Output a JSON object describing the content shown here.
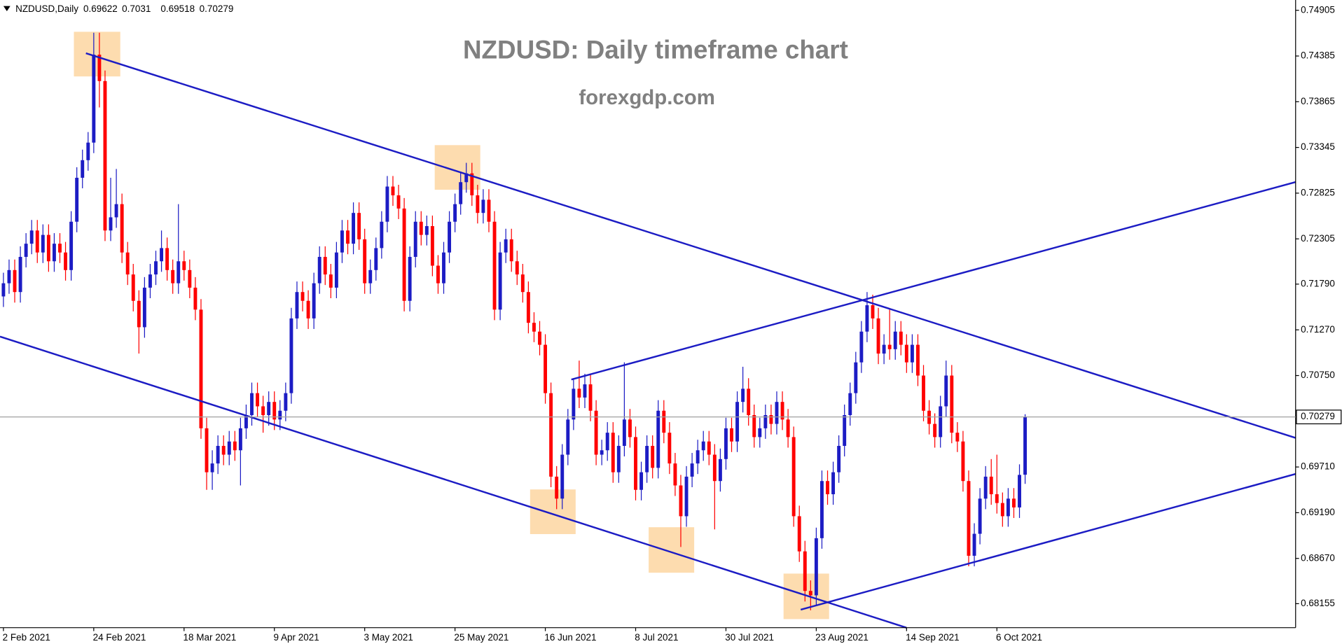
{
  "chart_data": {
    "type": "candlestick",
    "symbol_label": "NZDUSD,Daily",
    "title": "NZDUSD: Daily timeframe chart",
    "subtitle": "forexgdp.com",
    "up_color": "#1c1cc4",
    "down_color": "#ff0000",
    "price_line_color": "#a0a0a0",
    "grid": false,
    "ylim": [
      0.67882,
      0.75022
    ],
    "yticks": [
      0.74905,
      0.74385,
      0.73865,
      0.73345,
      {
        "value": 0.72825,
        "label": "0.72825"
      },
      0.72305,
      {
        "value": 0.7179,
        "label": "0.71790"
      },
      {
        "value": 0.7127,
        "label": "0.71270"
      },
      {
        "value": 0.7075,
        "label": "0.70750"
      },
      {
        "value": 0.6971,
        "label": "0.69710"
      },
      {
        "value": 0.6919,
        "label": "0.69190"
      },
      {
        "value": 0.6867,
        "label": "0.68670"
      },
      0.68155
    ],
    "categories": [
      "2 Feb 2021",
      null,
      null,
      null,
      null,
      null,
      null,
      null,
      null,
      null,
      null,
      null,
      null,
      null,
      null,
      null,
      "24 Feb 2021",
      null,
      null,
      null,
      null,
      null,
      null,
      null,
      null,
      null,
      null,
      null,
      null,
      null,
      null,
      null,
      "18 Mar 2021",
      null,
      null,
      null,
      null,
      null,
      null,
      null,
      null,
      null,
      null,
      null,
      null,
      null,
      null,
      null,
      "9 Apr 2021",
      null,
      null,
      null,
      null,
      null,
      null,
      null,
      null,
      null,
      null,
      null,
      null,
      null,
      null,
      null,
      "3 May 2021",
      null,
      null,
      null,
      null,
      null,
      null,
      null,
      null,
      null,
      null,
      null,
      null,
      null,
      null,
      null,
      "25 May 2021",
      null,
      null,
      null,
      null,
      null,
      null,
      null,
      null,
      null,
      null,
      null,
      null,
      null,
      null,
      null,
      "16 Jun 2021",
      null,
      null,
      null,
      null,
      null,
      null,
      null,
      null,
      null,
      null,
      null,
      null,
      null,
      null,
      null,
      "8 Jul 2021",
      null,
      null,
      null,
      null,
      null,
      null,
      null,
      null,
      null,
      null,
      null,
      null,
      null,
      null,
      null,
      "30 Jul 2021",
      null,
      null,
      null,
      null,
      null,
      null,
      null,
      null,
      null,
      null,
      null,
      null,
      null,
      null,
      null,
      "23 Aug 2021",
      null,
      null,
      null,
      null,
      null,
      null,
      null,
      null,
      null,
      null,
      null,
      null,
      null,
      null,
      null,
      "14 Sep 2021",
      null,
      null,
      null,
      null,
      null,
      null,
      null,
      null,
      null,
      null,
      null,
      null,
      null,
      null,
      null,
      "6 Oct 2021",
      null,
      null,
      null,
      null,
      null
    ],
    "open": [
      0.7165,
      0.718,
      0.7195,
      0.717,
      0.721,
      0.7225,
      0.724,
      0.7215,
      0.7235,
      0.7205,
      0.7225,
      0.7215,
      0.7195,
      0.725,
      0.73,
      0.732,
      0.734,
      0.744,
      0.741,
      0.724,
      0.7255,
      0.727,
      0.7215,
      0.719,
      0.716,
      0.713,
      0.7175,
      0.719,
      0.7205,
      0.722,
      0.7195,
      0.718,
      0.7205,
      0.7195,
      0.7175,
      0.715,
      0.7015,
      0.6965,
      0.6975,
      0.6995,
      0.6985,
      0.7,
      0.699,
      0.7015,
      0.703,
      0.7055,
      0.704,
      0.703,
      0.7045,
      0.7025,
      0.7035,
      0.7055,
      0.714,
      0.717,
      0.716,
      0.714,
      0.718,
      0.721,
      0.719,
      0.7175,
      0.7215,
      0.724,
      0.7225,
      0.726,
      0.723,
      0.718,
      0.7195,
      0.722,
      0.725,
      0.729,
      0.728,
      0.7265,
      0.716,
      0.721,
      0.725,
      0.7235,
      0.7245,
      0.72,
      0.718,
      0.7215,
      0.725,
      0.727,
      0.7295,
      0.7305,
      0.728,
      0.726,
      0.7275,
      0.725,
      0.715,
      0.7215,
      0.723,
      0.7205,
      0.719,
      0.717,
      0.7135,
      0.7125,
      0.711,
      0.7055,
      0.696,
      0.6935,
      0.6985,
      0.7025,
      0.706,
      0.705,
      0.7065,
      0.7035,
      0.6985,
      0.699,
      0.701,
      0.6965,
      0.6995,
      0.7025,
      0.7005,
      0.6945,
      0.6965,
      0.6995,
      0.697,
      0.7035,
      0.701,
      0.6975,
      0.695,
      0.6915,
      0.696,
      0.6975,
      0.699,
      0.7,
      0.6985,
      0.6955,
      0.698,
      0.7015,
      0.7,
      0.7045,
      0.706,
      0.703,
      0.7005,
      0.7015,
      0.703,
      0.702,
      0.7045,
      0.7025,
      0.7005,
      0.6915,
      0.6875,
      0.683,
      0.6825,
      0.689,
      0.6955,
      0.694,
      0.6965,
      0.6995,
      0.703,
      0.7055,
      0.709,
      0.7125,
      0.7155,
      0.714,
      0.71,
      0.711,
      0.7105,
      0.7125,
      0.711,
      0.709,
      0.711,
      0.7075,
      0.7035,
      0.702,
      0.7005,
      0.704,
      0.7075,
      0.701,
      0.7,
      0.6955,
      0.687,
      0.6895,
      0.6935,
      0.696,
      0.694,
      0.693,
      0.6915,
      0.6935,
      0.6925,
      0.69622
    ],
    "high": [
      0.7192,
      0.7207,
      0.7207,
      0.7222,
      0.7237,
      0.7252,
      0.7252,
      0.7247,
      0.7247,
      0.7237,
      0.7237,
      0.7227,
      0.7262,
      0.7312,
      0.7332,
      0.7352,
      0.7465,
      0.7465,
      0.7422,
      0.73,
      0.731,
      0.7282,
      0.7227,
      0.7202,
      0.7172,
      0.7187,
      0.7202,
      0.7217,
      0.724,
      0.7232,
      0.7207,
      0.727,
      0.7217,
      0.7207,
      0.7187,
      0.7162,
      0.7027,
      0.699,
      0.7007,
      0.7007,
      0.7012,
      0.7012,
      0.7027,
      0.7042,
      0.7067,
      0.7067,
      0.7052,
      0.7057,
      0.7057,
      0.7047,
      0.7067,
      0.7152,
      0.7182,
      0.7182,
      0.7172,
      0.7192,
      0.7222,
      0.7222,
      0.7202,
      0.7227,
      0.7252,
      0.7252,
      0.7272,
      0.7272,
      0.7242,
      0.7207,
      0.7232,
      0.7262,
      0.7302,
      0.7302,
      0.7292,
      0.7277,
      0.7222,
      0.7262,
      0.7262,
      0.7257,
      0.7257,
      0.7212,
      0.7227,
      0.7262,
      0.7282,
      0.7307,
      0.7317,
      0.7317,
      0.7292,
      0.7287,
      0.7287,
      0.7262,
      0.7227,
      0.7242,
      0.7242,
      0.7217,
      0.7202,
      0.7182,
      0.7147,
      0.7137,
      0.7122,
      0.7067,
      0.6972,
      0.6997,
      0.7037,
      0.7072,
      0.7092,
      0.7077,
      0.7077,
      0.7047,
      0.7002,
      0.7022,
      0.7022,
      0.7007,
      0.709,
      0.7037,
      0.7017,
      0.6977,
      0.7007,
      0.7007,
      0.7047,
      0.7047,
      0.7022,
      0.6987,
      0.6962,
      0.6972,
      0.6987,
      0.7002,
      0.7012,
      0.7012,
      0.6997,
      0.6992,
      0.7027,
      0.7027,
      0.7057,
      0.7085,
      0.7072,
      0.7042,
      0.7027,
      0.7042,
      0.7042,
      0.7057,
      0.7057,
      0.7037,
      0.7017,
      0.6927,
      0.6887,
      0.6842,
      0.6902,
      0.6967,
      0.6967,
      0.6977,
      0.7007,
      0.7042,
      0.7067,
      0.7102,
      0.7137,
      0.717,
      0.7167,
      0.7152,
      0.7122,
      0.715,
      0.7137,
      0.7137,
      0.7122,
      0.7122,
      0.7122,
      0.7087,
      0.7047,
      0.7032,
      0.7052,
      0.7092,
      0.7087,
      0.7022,
      0.7012,
      0.6967,
      0.6907,
      0.6947,
      0.6972,
      0.698,
      0.6985,
      0.6942,
      0.6947,
      0.6947,
      0.6974,
      0.7031
    ],
    "low": [
      0.7153,
      0.7168,
      0.7158,
      0.7158,
      0.7198,
      0.7213,
      0.7203,
      0.7203,
      0.7193,
      0.7193,
      0.7203,
      0.7183,
      0.7183,
      0.7238,
      0.7288,
      0.7308,
      0.7328,
      0.738,
      0.7228,
      0.7228,
      0.7243,
      0.7203,
      0.7178,
      0.7148,
      0.71,
      0.7118,
      0.7163,
      0.7178,
      0.7193,
      0.7183,
      0.7168,
      0.7168,
      0.7183,
      0.7163,
      0.7138,
      0.7003,
      0.6945,
      0.6945,
      0.6963,
      0.6973,
      0.6973,
      0.6978,
      0.695,
      0.7003,
      0.7018,
      0.7028,
      0.701,
      0.7018,
      0.7013,
      0.7013,
      0.7023,
      0.7043,
      0.7128,
      0.7148,
      0.7128,
      0.7128,
      0.7168,
      0.7178,
      0.7163,
      0.7163,
      0.7203,
      0.7213,
      0.7213,
      0.7218,
      0.7168,
      0.7168,
      0.7183,
      0.7208,
      0.7238,
      0.7268,
      0.7253,
      0.7148,
      0.7148,
      0.7198,
      0.7223,
      0.7223,
      0.7188,
      0.7168,
      0.7168,
      0.7203,
      0.7238,
      0.7258,
      0.7283,
      0.7268,
      0.7248,
      0.7248,
      0.7238,
      0.7138,
      0.7138,
      0.7203,
      0.7193,
      0.7178,
      0.7158,
      0.7123,
      0.7113,
      0.7098,
      0.7043,
      0.6948,
      0.6923,
      0.6923,
      0.6973,
      0.7013,
      0.7038,
      0.7038,
      0.7023,
      0.6973,
      0.6973,
      0.6978,
      0.6953,
      0.6953,
      0.6983,
      0.6993,
      0.6933,
      0.6933,
      0.6953,
      0.6958,
      0.6958,
      0.6998,
      0.6963,
      0.6938,
      0.688,
      0.6903,
      0.6948,
      0.6963,
      0.6978,
      0.6973,
      0.69,
      0.6943,
      0.6968,
      0.6988,
      0.6988,
      0.7033,
      0.7018,
      0.6993,
      0.6993,
      0.7003,
      0.7008,
      0.7008,
      0.7013,
      0.6993,
      0.6903,
      0.6863,
      0.6818,
      0.6808,
      0.6813,
      0.6878,
      0.6928,
      0.6928,
      0.6953,
      0.6983,
      0.7018,
      0.7043,
      0.7078,
      0.7113,
      0.7128,
      0.7088,
      0.7088,
      0.7093,
      0.7093,
      0.7098,
      0.7078,
      0.7078,
      0.7063,
      0.7023,
      0.7008,
      0.6993,
      0.6993,
      0.7028,
      0.6998,
      0.6988,
      0.6943,
      0.6858,
      0.6858,
      0.6883,
      0.6923,
      0.6928,
      0.6918,
      0.6903,
      0.6903,
      0.6913,
      0.6913,
      0.69518
    ],
    "close": [
      0.718,
      0.7195,
      0.717,
      0.721,
      0.7225,
      0.724,
      0.7215,
      0.7235,
      0.7205,
      0.7225,
      0.7215,
      0.7195,
      0.725,
      0.73,
      0.732,
      0.734,
      0.744,
      0.741,
      0.724,
      0.7255,
      0.727,
      0.7215,
      0.719,
      0.716,
      0.713,
      0.7175,
      0.719,
      0.7205,
      0.722,
      0.7195,
      0.718,
      0.7205,
      0.7195,
      0.7175,
      0.715,
      0.7015,
      0.6965,
      0.6975,
      0.6995,
      0.6985,
      0.7,
      0.699,
      0.7015,
      0.703,
      0.7055,
      0.704,
      0.703,
      0.7045,
      0.7025,
      0.7035,
      0.7055,
      0.714,
      0.717,
      0.716,
      0.714,
      0.718,
      0.721,
      0.719,
      0.7175,
      0.7215,
      0.724,
      0.7225,
      0.726,
      0.723,
      0.718,
      0.7195,
      0.722,
      0.725,
      0.729,
      0.728,
      0.7265,
      0.716,
      0.721,
      0.725,
      0.7235,
      0.7245,
      0.72,
      0.718,
      0.7215,
      0.725,
      0.727,
      0.7295,
      0.7305,
      0.728,
      0.726,
      0.7275,
      0.725,
      0.715,
      0.7215,
      0.723,
      0.7205,
      0.719,
      0.717,
      0.7135,
      0.7125,
      0.711,
      0.7055,
      0.696,
      0.6935,
      0.6985,
      0.7025,
      0.706,
      0.705,
      0.7065,
      0.7035,
      0.6985,
      0.699,
      0.701,
      0.6965,
      0.6995,
      0.7025,
      0.7005,
      0.6945,
      0.6965,
      0.6995,
      0.697,
      0.7035,
      0.701,
      0.6975,
      0.695,
      0.6915,
      0.696,
      0.6975,
      0.699,
      0.7,
      0.6985,
      0.6955,
      0.698,
      0.7015,
      0.7,
      0.7045,
      0.706,
      0.703,
      0.7005,
      0.7015,
      0.703,
      0.702,
      0.7045,
      0.7025,
      0.7005,
      0.6915,
      0.6875,
      0.683,
      0.6825,
      0.689,
      0.6955,
      0.694,
      0.6965,
      0.6995,
      0.703,
      0.7055,
      0.709,
      0.7125,
      0.7155,
      0.714,
      0.71,
      0.711,
      0.7105,
      0.7125,
      0.711,
      0.709,
      0.711,
      0.7075,
      0.7035,
      0.702,
      0.7005,
      0.704,
      0.7075,
      0.701,
      0.7,
      0.6955,
      0.687,
      0.6895,
      0.6935,
      0.696,
      0.694,
      0.693,
      0.6915,
      0.6935,
      0.6925,
      0.6962,
      0.70279
    ]
  }
}
